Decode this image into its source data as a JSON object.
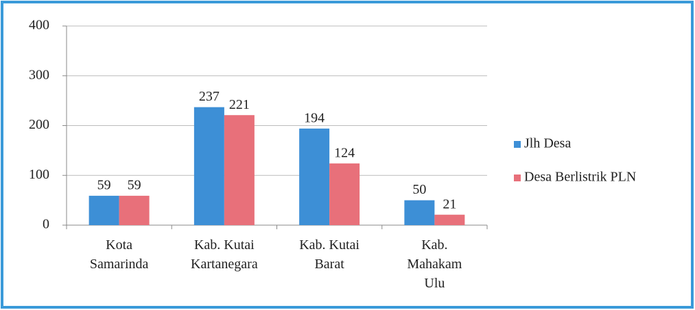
{
  "chart_data": {
    "type": "bar",
    "categories": [
      "Kota\nSamarinda",
      "Kab. Kutai\nKartanegara",
      "Kab. Kutai\nBarat",
      "Kab.\nMahakam\nUlu"
    ],
    "series": [
      {
        "name": "Jlh Desa",
        "color": "#3d8fd6",
        "values": [
          59,
          237,
          194,
          50
        ]
      },
      {
        "name": "Desa Berlistrik PLN",
        "color": "#e8707a",
        "values": [
          59,
          221,
          124,
          21
        ]
      }
    ],
    "ylim": [
      0,
      400
    ],
    "yticks": [
      0,
      100,
      200,
      300,
      400
    ],
    "grid": true,
    "legend": "right"
  }
}
